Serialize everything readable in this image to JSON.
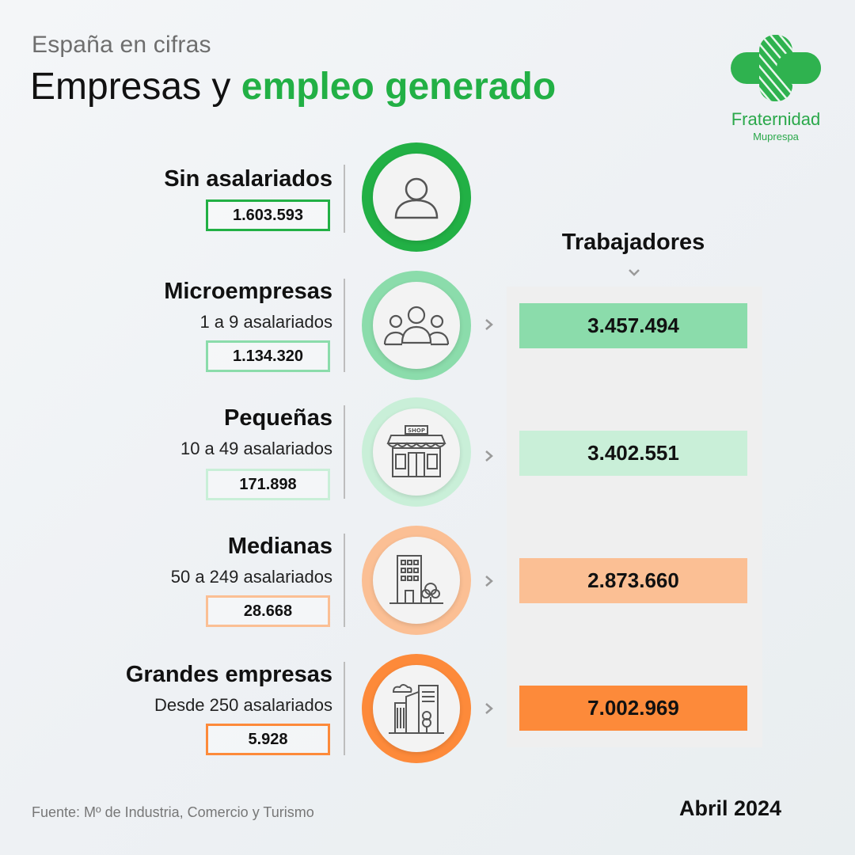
{
  "header": {
    "subtitle": "España en cifras",
    "title_plain": "Empresas y ",
    "title_accent": "empleo generado"
  },
  "logo": {
    "name": "Fraternidad",
    "sub": "Muprespa",
    "color": "#2aa84a"
  },
  "categories": [
    {
      "name": "Sin asalariados",
      "range": "",
      "count": "1.603.593",
      "color": "#22b045",
      "icon": "person-icon"
    },
    {
      "name": "Microempresas",
      "range": "1 a 9 asalariados",
      "count": "1.134.320",
      "color": "#8bdcab",
      "icon": "group-icon"
    },
    {
      "name": "Pequeñas",
      "range": "10 a 49 asalariados",
      "count": "171.898",
      "color": "#c9efd8",
      "icon": "shop-icon"
    },
    {
      "name": "Medianas",
      "range": "50 a 249 asalariados",
      "count": "28.668",
      "color": "#fbbf94",
      "icon": "office-building-icon"
    },
    {
      "name": "Grandes empresas",
      "range": "Desde 250 asalariados",
      "count": "5.928",
      "color": "#fd8a3a",
      "icon": "city-buildings-icon"
    }
  ],
  "workers": {
    "title": "Trabajadores",
    "values": [
      {
        "value": "3.457.494",
        "color": "#8bdcab"
      },
      {
        "value": "3.402.551",
        "color": "#c9efd8"
      },
      {
        "value": "2.873.660",
        "color": "#fbbf94"
      },
      {
        "value": "7.002.969",
        "color": "#fd8a3a"
      }
    ]
  },
  "footer": {
    "source": "Fuente: Mº de Industria, Comercio y Turismo",
    "date": "Abril 2024"
  }
}
